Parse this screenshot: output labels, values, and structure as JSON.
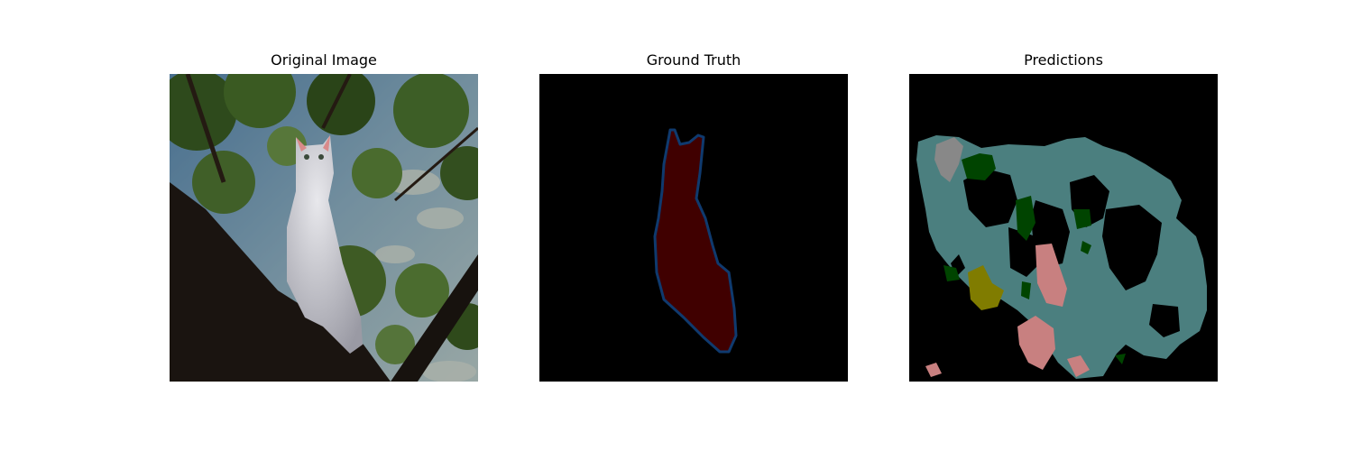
{
  "figure": {
    "panels": [
      {
        "title": "Original Image"
      },
      {
        "title": "Ground Truth"
      },
      {
        "title": "Predictions"
      }
    ]
  },
  "colors": {
    "background": "#ffffff",
    "mask_background": "#000000",
    "ground_truth_fill": "#400000",
    "ground_truth_outline": "#0f3a6e",
    "prediction_teal": "#4b7f7f",
    "prediction_green": "#004400",
    "prediction_pink": "#c88080",
    "prediction_gray": "#888888",
    "prediction_olive": "#807c00"
  }
}
